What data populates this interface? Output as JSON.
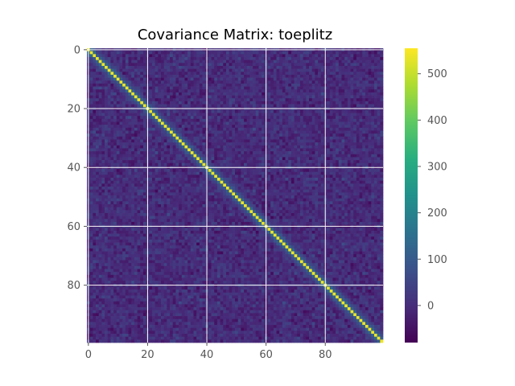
{
  "chart_data": {
    "type": "heatmap",
    "title": "Covariance Matrix: toeplitz",
    "xlabel": "",
    "ylabel": "",
    "matrix_size": 100,
    "structure": "toeplitz",
    "diagonal_value": 540,
    "near_diagonal_values": [
      540,
      120,
      60,
      30
    ],
    "off_diagonal_mean": 0,
    "off_diagonal_noise": 25,
    "value_range": [
      -80,
      555
    ],
    "x_ticks": [
      0,
      20,
      40,
      60,
      80
    ],
    "y_ticks": [
      0,
      20,
      40,
      60,
      80
    ],
    "colorbar_ticks": [
      0,
      100,
      200,
      300,
      400,
      500
    ],
    "colormap": "viridis",
    "grid": true
  },
  "colors": {
    "grid": "#ffffff",
    "tick_text": "#555555",
    "tick_mark": "#555555"
  }
}
